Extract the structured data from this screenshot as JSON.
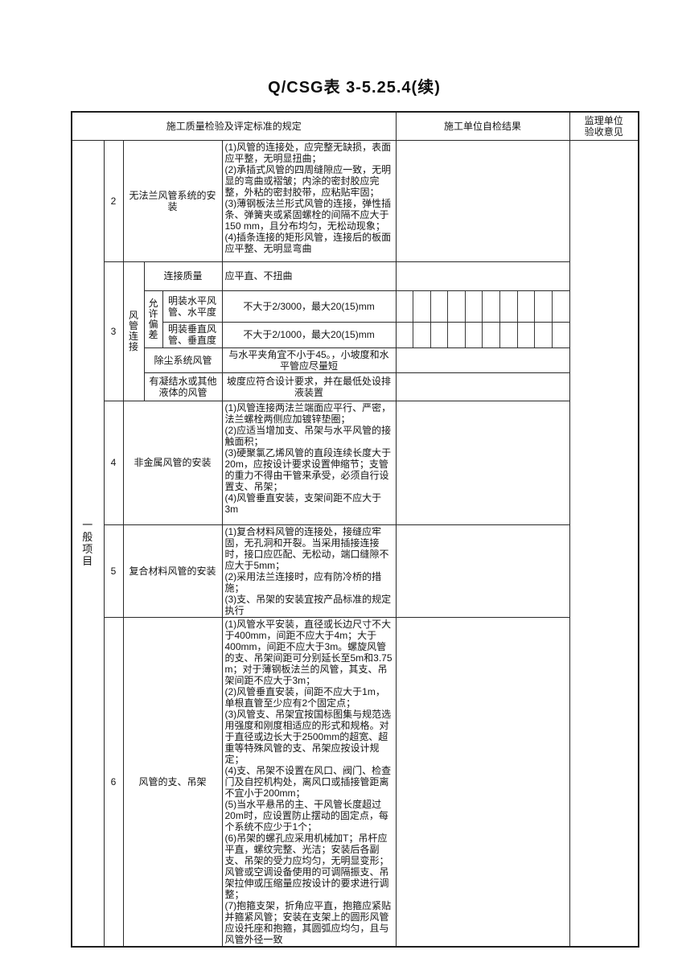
{
  "page": {
    "title": "Q/CSG表 3-5.25.4(续)"
  },
  "table": {
    "header": {
      "col_standard": "施工质量检验及评定标准的规定",
      "col_self_check": "施工单位自检结果",
      "col_supervisor": "监理单位验收意见"
    },
    "side_label": "一般项目",
    "check_grid_cells": 10,
    "rows": {
      "row2": {
        "no": "2",
        "name": "无法兰风管系统的安装",
        "content": "(1)风管的连接处，应完整无缺损，表面应平整，无明显扭曲；\n(2)承插式风管的四周缝隙应一致，无明显的弯曲或褶皱；内涂的密封胶应完整，外粘的密封胶带，应粘贴牢固；\n(3)薄钢板法兰形式风管的连接，弹性插条、弹簧夹或紧固螺栓的间隔不应大于150 mm，且分布均匀，无松动现象；\n(4)插条连接的矩形风管，连接后的板面应平整、无明显弯曲"
      },
      "row3": {
        "no": "3",
        "name": "风管连接",
        "quality": {
          "label": "连接质量",
          "value": "应平直、不扭曲"
        },
        "deviation_label": "允许偏差",
        "deviation_rows": [
          {
            "label": "明装水平风管、水平度",
            "value": "不大于2/3000，最大20(15)mm"
          },
          {
            "label": "明装垂直风管、垂直度",
            "value": "不大于2/1000，最大20(15)mm"
          }
        ],
        "other_rows": [
          {
            "label": "除尘系统风管",
            "value": "与水平夹角宜不小于45。，小坡度和水平管应尽量短"
          },
          {
            "label": "有凝结水或其他液体的风管",
            "value": "坡度应符合设计要求，并在最低处设排液装置"
          }
        ]
      },
      "row4": {
        "no": "4",
        "name": "非金属风管的安装",
        "content": "(1)风管连接两法兰端面应平行、严密，法兰螺栓两侧应加镀锌垫圈；\n(2)应适当增加支、吊架与水平风管的接触面积；\n(3)硬聚氯乙烯风管的直段连续长度大于\n20m，应按设计要求设置伸缩节；支管的重力不得由干管来承受，必须自行设置支、吊架；\n(4)风管垂直安装，支架间距不应大于\n3m"
      },
      "row5": {
        "no": "5",
        "name": "复合材料风管的安装",
        "content": "(1)复合材料风管的连接处，接缝应牢固，无孔洞和开裂。当采用插接连接时，接口应匹配、无松动，端口缝隙不应大于5mm；\n(2)采用法兰连接时，应有防冷桥的措施；\n(3)支、吊架的安装宜按产品标准的规定执行"
      },
      "row6": {
        "no": "6",
        "name": "风管的支、吊架",
        "content": "(1)风管水平安装，直径或长边尺寸不大于400mm，间距不应大于4m；大于\n400mm，间距不应大于3m。螺旋风管的支、吊架间距可分别延长至5m和3.75m；对于薄钢板法兰的风管，其支、吊架间距不应大于3m；\n(2)风管垂直安装，间距不应大于1m，单根直管至少应有2个固定点；\n(3)风管支、吊架宜按国标图集与规范选用强度和刚度相适应的形式和规格。对于直径或边长大于2500mm的超宽、超重等特殊风管的支、吊架应按设计规定；\n(4)支、吊架不设置在风口、阀门、检查门及自控机构处，离风口或插接管距离不宜小于200mm；\n(5)当水平悬吊的主、干风管长度超过\n20m时，应设置防止摆动的固定点，每个系统不应少于1个；\n(6)吊架的螺孔应采用机械加T；吊杆应平直，螺纹完整、光洁；安装后各副支、吊架的受力应均匀，无明显变形；风管或空调设备使用的可调隔振支、吊架拉伸或压缩量应按设计的要求进行调整；\n(7)抱箍支架，折角应平直，抱箍应紧贴并箍紧风管；安装在支架上的圆形风管应设托座和抱箍，其圆弧应均匀，且与风管外径一致"
      }
    }
  }
}
